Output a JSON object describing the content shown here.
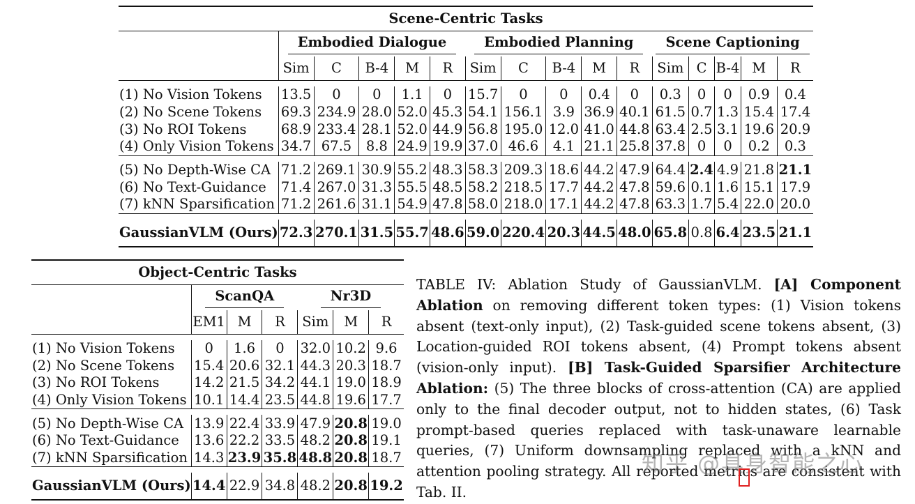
{
  "scene_table": {
    "title": "Scene-Centric Tasks",
    "groups": [
      "Embodied Dialogue",
      "Embodied Planning",
      "Scene Captioning"
    ],
    "metrics": [
      "Sim",
      "C",
      "B-4",
      "M",
      "R",
      "Sim",
      "C",
      "B-4",
      "M",
      "R",
      "Sim",
      "C",
      "B-4",
      "M",
      "R"
    ],
    "rows": [
      {
        "name": "(1) No Vision Tokens",
        "vals": [
          "13.5",
          "0",
          "0",
          "1.1",
          "0",
          "15.7",
          "0",
          "0",
          "0.4",
          "0",
          "0.3",
          "0",
          "0",
          "0.9",
          "0.4"
        ]
      },
      {
        "name": "(2) No Scene Tokens",
        "vals": [
          "69.3",
          "234.9",
          "28.0",
          "52.0",
          "45.3",
          "54.1",
          "156.1",
          "3.9",
          "36.9",
          "40.1",
          "61.5",
          "0.7",
          "1.3",
          "15.4",
          "17.4"
        ]
      },
      {
        "name": "(3) No ROI Tokens",
        "vals": [
          "68.9",
          "233.4",
          "28.1",
          "52.0",
          "44.9",
          "56.8",
          "195.0",
          "12.0",
          "41.0",
          "44.8",
          "63.4",
          "2.5",
          "3.1",
          "19.6",
          "20.9"
        ]
      },
      {
        "name": "(4) Only Vision Tokens",
        "vals": [
          "34.7",
          "67.5",
          "8.8",
          "24.9",
          "19.9",
          "37.0",
          "46.6",
          "4.1",
          "21.1",
          "25.8",
          "37.8",
          "0",
          "0",
          "0.2",
          "0.3"
        ]
      },
      {
        "name": "(5) No Depth-Wise CA",
        "vals": [
          "71.2",
          "269.1",
          "30.9",
          "55.2",
          "48.3",
          "58.3",
          "209.3",
          "18.6",
          "44.2",
          "47.9",
          "64.4",
          "2.4",
          "4.9",
          "21.8",
          "21.1"
        ]
      },
      {
        "name": "(6) No Text-Guidance",
        "vals": [
          "71.4",
          "267.0",
          "31.3",
          "55.5",
          "48.5",
          "58.2",
          "218.5",
          "17.7",
          "44.2",
          "47.8",
          "59.6",
          "0.1",
          "1.6",
          "15.1",
          "17.9"
        ]
      },
      {
        "name": "(7) kNN Sparsification",
        "vals": [
          "71.2",
          "261.6",
          "31.1",
          "54.9",
          "47.8",
          "58.0",
          "218.0",
          "17.1",
          "44.2",
          "47.8",
          "63.3",
          "1.7",
          "5.4",
          "22.0",
          "20.0"
        ]
      },
      {
        "name": "GaussianVLM (Ours)",
        "vals": [
          "72.3",
          "270.1",
          "31.5",
          "55.7",
          "48.6",
          "59.0",
          "220.4",
          "20.3",
          "44.5",
          "48.0",
          "65.8",
          "0.8",
          "6.4",
          "23.5",
          "21.1"
        ]
      }
    ]
  },
  "object_table": {
    "title": "Object-Centric Tasks",
    "groups": [
      "ScanQA",
      "Nr3D"
    ],
    "metrics": [
      "EM1",
      "M",
      "R",
      "Sim",
      "M",
      "R"
    ],
    "rows": [
      {
        "name": "(1) No Vision Tokens",
        "vals": [
          "0",
          "1.6",
          "0",
          "32.0",
          "10.2",
          "9.6"
        ]
      },
      {
        "name": "(2) No Scene Tokens",
        "vals": [
          "15.4",
          "20.6",
          "32.1",
          "44.3",
          "20.3",
          "18.7"
        ]
      },
      {
        "name": "(3) No ROI Tokens",
        "vals": [
          "14.2",
          "21.5",
          "34.2",
          "44.1",
          "19.0",
          "18.9"
        ]
      },
      {
        "name": "(4) Only Vision Tokens",
        "vals": [
          "10.1",
          "14.4",
          "23.5",
          "44.8",
          "19.6",
          "17.7"
        ]
      },
      {
        "name": "(5) No Depth-Wise CA",
        "vals": [
          "13.9",
          "22.4",
          "33.9",
          "47.9",
          "20.8",
          "19.0"
        ]
      },
      {
        "name": "(6) No Text-Guidance",
        "vals": [
          "13.6",
          "22.2",
          "33.5",
          "48.2",
          "20.8",
          "19.1"
        ]
      },
      {
        "name": "(7) kNN Sparsification",
        "vals": [
          "14.3",
          "23.9",
          "35.8",
          "48.8",
          "20.8",
          "18.7"
        ]
      },
      {
        "name": "GaussianVLM (Ours)",
        "vals": [
          "14.4",
          "22.9",
          "34.8",
          "48.2",
          "20.8",
          "19.2"
        ]
      }
    ]
  },
  "caption": {
    "p1": "TABLE IV: Ablation Study of GaussianVLM. ",
    "b1": "[A] Component Ablation",
    "p2": " on removing different token types: (1) Vision tokens absent (text-only input), (2) Task-guided scene tokens absent, (3) Location-guided ROI tokens absent, (4) Prompt tokens absent (vision-only input). ",
    "b2": "[B] Task-Guided Sparsifier Architecture Ablation:",
    "p3": " (5) The three blocks of cross-attention (CA) are applied only to the final decoder output, not to hidden states, (6) Task prompt-based queries replaced with task-unaware learnable queries, (7) Uniform downsampling replaced with a kNN and attention pooling strategy. All reported metrics are consistent with Tab. II."
  },
  "watermark": "知乎 @具身智能之心"
}
